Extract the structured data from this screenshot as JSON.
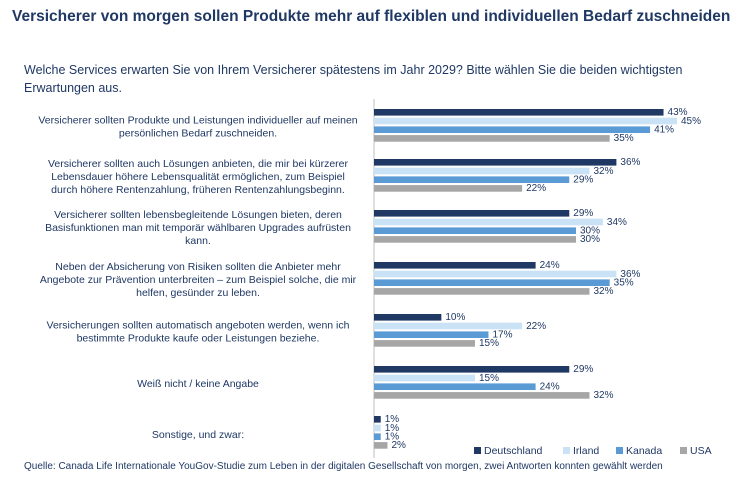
{
  "title": "Versicherer von morgen sollen Produkte mehr auf flexiblen und individuellen Bedarf zuschneiden",
  "subtitle": "Welche Services erwarten Sie von Ihrem Versicherer spätestens im Jahr 2029? Bitte wählen Sie die beiden wichtigsten Erwartungen aus.",
  "footnote": "Quelle: Canada Life Internationale YouGov-Studie zum Leben in der digitalen Gesellschaft von morgen, zwei Antworten konnten gewählt werden",
  "colors": {
    "Deutschland": "#1f3864",
    "Irland": "#c9e2f6",
    "Kanada": "#5b9bd5",
    "USA": "#a6a6a6"
  },
  "chart_data": {
    "type": "bar",
    "orientation": "horizontal",
    "unit": "%",
    "xlim": [
      0,
      45
    ],
    "grid": false,
    "legend_position": "bottom-right",
    "categories": [
      [
        "Versicherer sollten Produkte und Leistungen individueller auf meinen",
        "persönlichen Bedarf zuschneiden."
      ],
      [
        "Versicherer sollten auch Lösungen anbieten, die mir bei kürzerer",
        "Lebensdauer höhere Lebensqualität ermöglichen, zum Beispiel",
        "durch höhere Rentenzahlung, früheren Rentenzahlungsbeginn."
      ],
      [
        "Versicherer sollten lebensbegleitende Lösungen bieten, deren",
        "Basisfunktionen man mit temporär wählbaren Upgrades aufrüsten",
        "kann."
      ],
      [
        "Neben der Absicherung von Risiken sollten die Anbieter mehr",
        "Angebote zur Prävention unterbreiten – zum Beispiel solche, die mir",
        "helfen, gesünder zu leben."
      ],
      [
        "Versicherungen sollten automatisch angeboten werden, wenn ich",
        "bestimmte Produkte kaufe oder Leistungen beziehe."
      ],
      [
        "Weiß nicht / keine Angabe"
      ],
      [
        "Sonstige, und zwar:"
      ]
    ],
    "series": [
      {
        "name": "Deutschland",
        "values": [
          43,
          36,
          29,
          24,
          10,
          29,
          1
        ]
      },
      {
        "name": "Irland",
        "values": [
          45,
          32,
          34,
          36,
          22,
          15,
          1
        ]
      },
      {
        "name": "Kanada",
        "values": [
          41,
          29,
          30,
          35,
          17,
          24,
          1
        ]
      },
      {
        "name": "USA",
        "values": [
          35,
          22,
          30,
          32,
          15,
          32,
          2
        ]
      }
    ]
  }
}
